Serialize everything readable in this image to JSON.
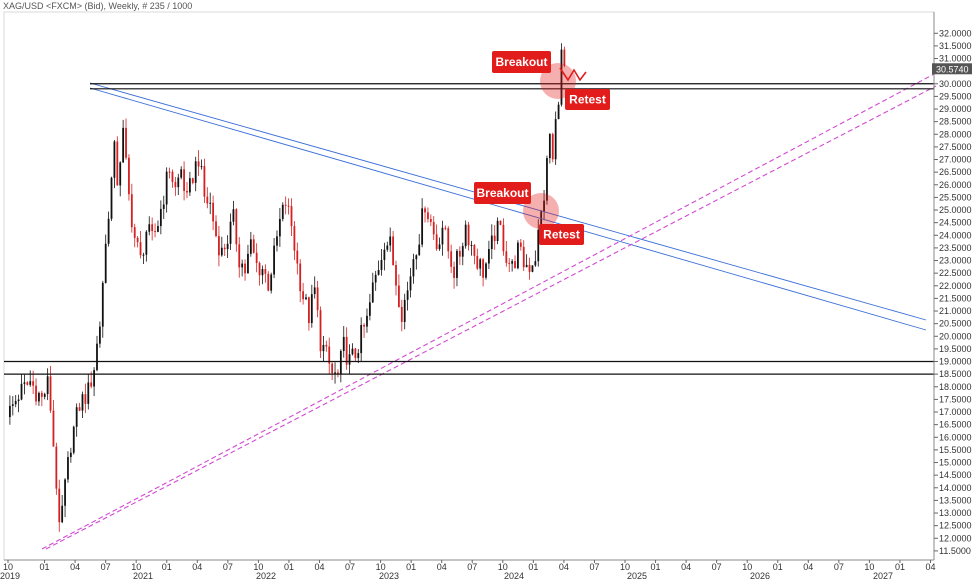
{
  "header": {
    "title": "XAG/USD <FXCM> (Bid), Weekly, # 235 / 1000"
  },
  "chart_data": {
    "type": "candlestick",
    "timeframe": "Weekly",
    "symbol": "XAG/USD",
    "ylim": [
      11.3,
      32.8
    ],
    "yticks": [
      "32.0000",
      "31.5000",
      "31.0000",
      "30.5000",
      "30.0000",
      "29.5000",
      "29.0000",
      "28.5000",
      "28.0000",
      "27.5000",
      "27.0000",
      "26.5000",
      "26.0000",
      "25.5000",
      "25.0000",
      "24.5000",
      "24.0000",
      "23.5000",
      "23.0000",
      "22.5000",
      "22.0000",
      "21.5000",
      "21.0000",
      "20.5000",
      "20.0000",
      "19.5000",
      "19.0000",
      "18.5000",
      "18.0000",
      "17.5000",
      "17.0000",
      "16.5000",
      "16.0000",
      "15.5000",
      "15.0000",
      "14.5000",
      "14.0000",
      "13.5000",
      "13.0000",
      "12.5000",
      "12.0000",
      "11.5000"
    ],
    "x_months": [
      "10",
      "01",
      "04",
      "07",
      "10",
      "01",
      "04",
      "07",
      "10",
      "01",
      "04",
      "07",
      "10",
      "01",
      "04",
      "07",
      "10",
      "01",
      "04",
      "07",
      "10",
      "01",
      "04",
      "07",
      "10",
      "01",
      "04",
      "07",
      "10",
      "01",
      "04"
    ],
    "x_years": [
      "2019",
      "2021",
      "2022",
      "2023",
      "2024",
      "2025",
      "2026",
      "2027"
    ],
    "current_price": "30.5740",
    "close_path": [
      [
        0,
        16.8
      ],
      [
        4,
        17.7
      ],
      [
        8,
        18.2
      ],
      [
        12,
        17.5
      ],
      [
        14,
        18.1
      ],
      [
        15,
        17.2
      ],
      [
        17,
        14.2
      ],
      [
        18,
        12.2
      ],
      [
        20,
        14.0
      ],
      [
        22,
        15.8
      ],
      [
        25,
        17.3
      ],
      [
        28,
        17.8
      ],
      [
        30,
        18.8
      ],
      [
        32,
        20.5
      ],
      [
        33,
        22.2
      ],
      [
        35,
        25.0
      ],
      [
        37,
        27.3
      ],
      [
        38,
        26.2
      ],
      [
        40,
        28.0
      ],
      [
        42,
        25.5
      ],
      [
        44,
        23.9
      ],
      [
        46,
        23.0
      ],
      [
        48,
        24.2
      ],
      [
        50,
        23.8
      ],
      [
        52,
        24.5
      ],
      [
        54,
        25.6
      ],
      [
        56,
        26.7
      ],
      [
        58,
        25.8
      ],
      [
        60,
        26.6
      ],
      [
        62,
        25.3
      ],
      [
        64,
        26.4
      ],
      [
        66,
        27.1
      ],
      [
        68,
        25.5
      ],
      [
        70,
        25.2
      ],
      [
        72,
        24.0
      ],
      [
        74,
        23.3
      ],
      [
        76,
        23.9
      ],
      [
        78,
        24.6
      ],
      [
        80,
        23.1
      ],
      [
        82,
        22.6
      ],
      [
        84,
        23.6
      ],
      [
        86,
        22.8
      ],
      [
        88,
        22.7
      ],
      [
        90,
        22.1
      ],
      [
        92,
        23.2
      ],
      [
        94,
        24.5
      ],
      [
        96,
        25.3
      ],
      [
        98,
        24.4
      ],
      [
        100,
        22.8
      ],
      [
        102,
        21.6
      ],
      [
        104,
        20.8
      ],
      [
        106,
        21.8
      ],
      [
        108,
        19.8
      ],
      [
        110,
        19.2
      ],
      [
        112,
        18.5
      ],
      [
        114,
        18.4
      ],
      [
        116,
        19.6
      ],
      [
        118,
        19.0
      ],
      [
        120,
        19.3
      ],
      [
        122,
        20.0
      ],
      [
        124,
        20.6
      ],
      [
        126,
        21.9
      ],
      [
        128,
        22.8
      ],
      [
        130,
        23.8
      ],
      [
        132,
        23.6
      ],
      [
        134,
        22.2
      ],
      [
        136,
        21.0
      ],
      [
        138,
        21.8
      ],
      [
        140,
        23.2
      ],
      [
        142,
        24.0
      ],
      [
        144,
        25.3
      ],
      [
        146,
        24.5
      ],
      [
        148,
        23.6
      ],
      [
        150,
        24.4
      ],
      [
        152,
        23.4
      ],
      [
        154,
        22.6
      ],
      [
        156,
        23.3
      ],
      [
        158,
        24.4
      ],
      [
        160,
        23.6
      ],
      [
        162,
        23.0
      ],
      [
        164,
        22.6
      ],
      [
        166,
        23.1
      ],
      [
        168,
        24.1
      ],
      [
        170,
        24.2
      ],
      [
        172,
        23.2
      ],
      [
        174,
        22.7
      ],
      [
        176,
        23.4
      ],
      [
        178,
        22.9
      ],
      [
        180,
        22.8
      ],
      [
        182,
        23.2
      ],
      [
        184,
        24.8
      ],
      [
        185,
        25.6
      ],
      [
        186,
        26.8
      ],
      [
        187,
        28.0
      ],
      [
        188,
        26.9
      ],
      [
        189,
        28.4
      ],
      [
        190,
        29.6
      ],
      [
        191,
        31.1
      ],
      [
        192,
        30.6
      ]
    ],
    "lines": [
      {
        "name": "resistance-upper",
        "y": 30.0
      },
      {
        "name": "resistance-lower",
        "y": 29.8
      },
      {
        "name": "support-upper",
        "y": 19.0
      },
      {
        "name": "support-lower",
        "y": 18.5
      }
    ],
    "annotations": [
      {
        "label": "Breakout",
        "kind": "breakout"
      },
      {
        "label": "Retest",
        "kind": "retest"
      },
      {
        "label": "Breakout",
        "kind": "breakout"
      },
      {
        "label": "Retest",
        "kind": "retest"
      }
    ],
    "colors": {
      "up": "#111111",
      "down": "#d42020",
      "trend_blue": "#3b6fd8",
      "trend_magenta": "#d24ad2",
      "callout": "#e21b1b"
    }
  }
}
